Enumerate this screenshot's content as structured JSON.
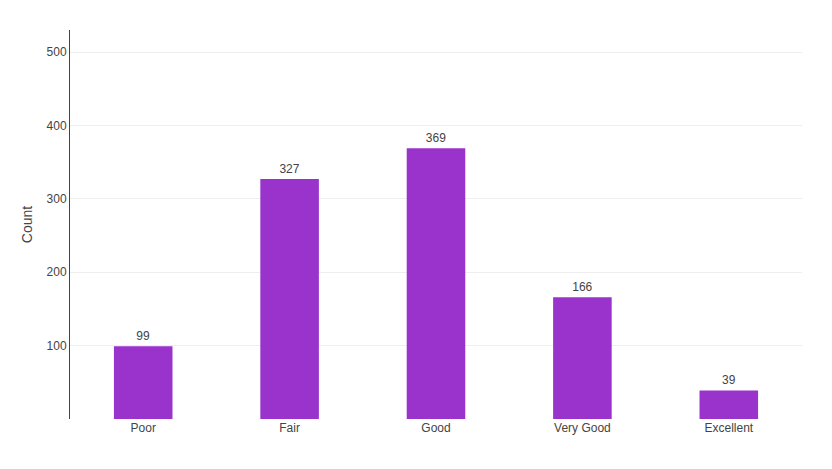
{
  "chart_data": {
    "type": "bar",
    "ylabel": "Count",
    "categories": [
      "Poor",
      "Fair",
      "Good",
      "Very Good",
      "Excellent"
    ],
    "values": [
      99,
      327,
      369,
      166,
      39
    ],
    "color": "#9933CC",
    "ylim": [
      0,
      530
    ],
    "yticks": [
      100,
      200,
      300,
      400,
      500
    ],
    "grid": true,
    "data_labels": true
  }
}
